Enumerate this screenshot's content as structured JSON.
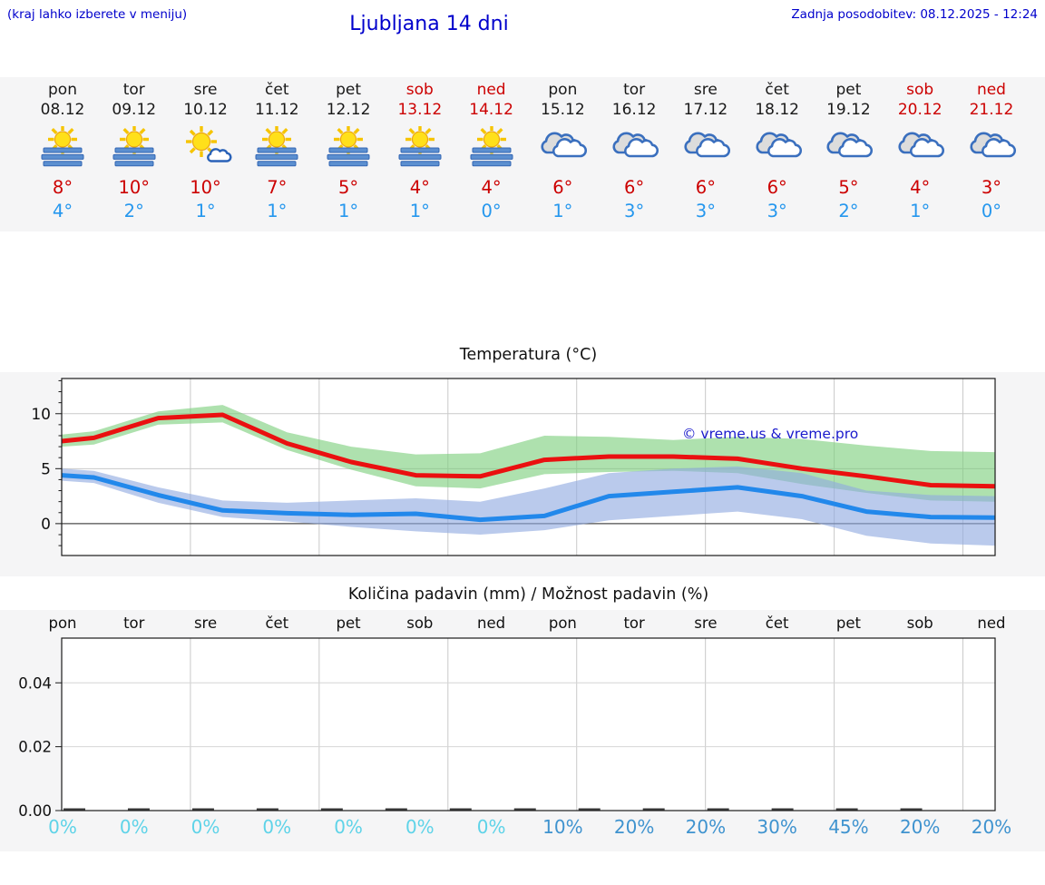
{
  "header": {
    "hint": "(kraj lahko izberete v meniju)",
    "title": "Ljubljana 14 dni",
    "updated": "Zadnja posodobitev: 08.12.2025 - 12:24"
  },
  "colors": {
    "header_blue": "#0000cc",
    "weekend_red": "#cc0000",
    "high_temp_red": "#cc0000",
    "low_temp_blue": "#2597ee",
    "max_line": "#ea1010",
    "min_line": "#2288eb",
    "max_band": "#7ccf7c",
    "min_band": "#8fa9e0",
    "prob_zero": "#5ed3e8",
    "prob_nonzero": "#3f93cf",
    "watermark_blue": "#1a1acc"
  },
  "forecast": {
    "days": [
      {
        "name": "pon",
        "date": "08.12",
        "icon": "sun-fog",
        "high": "8°",
        "low": "4°",
        "weekend": false
      },
      {
        "name": "tor",
        "date": "09.12",
        "icon": "sun-fog",
        "high": "10°",
        "low": "2°",
        "weekend": false
      },
      {
        "name": "sre",
        "date": "10.12",
        "icon": "sun-cloud",
        "high": "10°",
        "low": "1°",
        "weekend": false
      },
      {
        "name": "čet",
        "date": "11.12",
        "icon": "sun-fog",
        "high": "7°",
        "low": "1°",
        "weekend": false
      },
      {
        "name": "pet",
        "date": "12.12",
        "icon": "sun-fog",
        "high": "5°",
        "low": "1°",
        "weekend": false
      },
      {
        "name": "sob",
        "date": "13.12",
        "icon": "sun-fog",
        "high": "4°",
        "low": "1°",
        "weekend": true
      },
      {
        "name": "ned",
        "date": "14.12",
        "icon": "sun-fog",
        "high": "4°",
        "low": "0°",
        "weekend": true
      },
      {
        "name": "pon",
        "date": "15.12",
        "icon": "cloudy",
        "high": "6°",
        "low": "1°",
        "weekend": false
      },
      {
        "name": "tor",
        "date": "16.12",
        "icon": "cloudy",
        "high": "6°",
        "low": "3°",
        "weekend": false
      },
      {
        "name": "sre",
        "date": "17.12",
        "icon": "cloudy",
        "high": "6°",
        "low": "3°",
        "weekend": false
      },
      {
        "name": "čet",
        "date": "18.12",
        "icon": "cloudy",
        "high": "6°",
        "low": "3°",
        "weekend": false
      },
      {
        "name": "pet",
        "date": "19.12",
        "icon": "cloudy",
        "high": "5°",
        "low": "2°",
        "weekend": false
      },
      {
        "name": "sob",
        "date": "20.12",
        "icon": "cloudy",
        "high": "4°",
        "low": "1°",
        "weekend": true
      },
      {
        "name": "ned",
        "date": "21.12",
        "icon": "cloudy",
        "high": "3°",
        "low": "0°",
        "weekend": true
      }
    ]
  },
  "chart_data": [
    {
      "type": "line",
      "title": "Temperatura (°C)",
      "watermark": "© vreme.us & vreme.pro",
      "xlabel": "",
      "ylabel": "",
      "x_days": [
        0,
        0.5,
        1.5,
        2.5,
        3.5,
        4.5,
        5.5,
        6.5,
        7.5,
        8.5,
        9.5,
        10.5,
        11.5,
        12.5,
        13.5,
        14.5
      ],
      "xlim": [
        0,
        14.5
      ],
      "ylim": [
        -2.9,
        13.2
      ],
      "yticks": [
        0,
        5,
        10
      ],
      "grid": true,
      "grid_x_step_days": 2,
      "series": [
        {
          "name": "max-temp",
          "color": "#ea1010",
          "values": [
            7.5,
            7.8,
            9.6,
            9.9,
            7.3,
            5.6,
            4.4,
            4.3,
            5.8,
            6.1,
            6.1,
            5.9,
            5.0,
            4.3,
            3.5,
            3.4
          ]
        },
        {
          "name": "min-temp",
          "color": "#2288eb",
          "values": [
            4.4,
            4.2,
            2.6,
            1.2,
            0.95,
            0.8,
            0.9,
            0.35,
            0.7,
            2.5,
            2.9,
            3.3,
            2.5,
            1.1,
            0.6,
            0.55
          ]
        }
      ],
      "bands": [
        {
          "name": "max-range",
          "color": "#7ccf7c",
          "upper": [
            8.1,
            8.4,
            10.2,
            10.8,
            8.3,
            7.0,
            6.3,
            6.4,
            8.0,
            7.9,
            7.6,
            7.9,
            7.7,
            7.1,
            6.6,
            6.5
          ],
          "lower": [
            7.0,
            7.2,
            9.0,
            9.2,
            6.7,
            4.9,
            3.4,
            3.2,
            4.5,
            4.7,
            4.8,
            4.6,
            3.6,
            2.8,
            2.1,
            2.0
          ]
        },
        {
          "name": "min-range",
          "color": "#8fa9e0",
          "upper": [
            5.0,
            4.8,
            3.3,
            2.1,
            1.9,
            2.1,
            2.3,
            2.0,
            3.2,
            4.6,
            5.0,
            5.2,
            4.6,
            3.0,
            2.6,
            2.5
          ],
          "lower": [
            3.9,
            3.7,
            1.9,
            0.6,
            0.2,
            -0.3,
            -0.7,
            -1.0,
            -0.6,
            0.3,
            0.7,
            1.1,
            0.4,
            -1.1,
            -1.8,
            -2.0
          ]
        }
      ]
    },
    {
      "type": "bar",
      "title": "Količina padavin (mm) / Možnost padavin (%)",
      "day_labels": [
        "pon",
        "tor",
        "sre",
        "čet",
        "pet",
        "sob",
        "ned",
        "pon",
        "tor",
        "sre",
        "čet",
        "pet",
        "sob",
        "ned"
      ],
      "values": [
        0,
        0,
        0,
        0,
        0,
        0,
        0,
        0,
        0,
        0,
        0,
        0,
        0,
        0
      ],
      "yticks": [
        "0.00",
        "0.02",
        "0.04"
      ],
      "ytick_values": [
        0,
        0.02,
        0.04
      ],
      "ylim": [
        0,
        0.054
      ],
      "grid": true,
      "probabilities": [
        "0%",
        "0%",
        "0%",
        "0%",
        "0%",
        "0%",
        "0%",
        "10%",
        "20%",
        "20%",
        "30%",
        "45%",
        "20%",
        "20%"
      ]
    }
  ]
}
